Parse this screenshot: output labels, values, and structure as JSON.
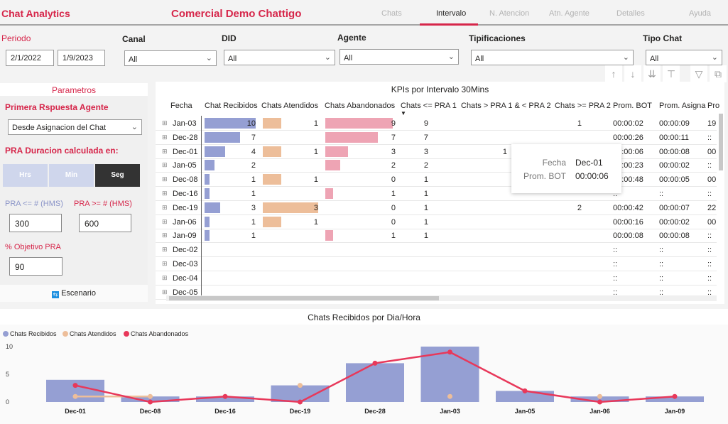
{
  "header": {
    "title": "Chat Analytics",
    "company": "Comercial Demo Chattigo",
    "tabs": [
      {
        "label": "Chats"
      },
      {
        "label": "Intervalo",
        "active": true
      },
      {
        "label": "N. Atencion"
      },
      {
        "label": "Atn. Agente"
      },
      {
        "label": "Detalles"
      },
      {
        "label": "Ayuda"
      }
    ]
  },
  "filters": {
    "periodo_label": "Periodo",
    "start": "2/1/2022",
    "end": "1/9/2023",
    "canal": {
      "label": "Canal",
      "value": "All"
    },
    "did": {
      "label": "DID",
      "value": "All"
    },
    "agente": {
      "label": "Agente",
      "value": "All"
    },
    "tipificaciones": {
      "label": "Tipificaciones",
      "value": "All"
    },
    "tipo_chat": {
      "label": "Tipo Chat",
      "value": "All"
    }
  },
  "toolbar": [
    "arrow-up-icon",
    "arrow-down-icon",
    "expand-all-down-icon",
    "expand-hierarchy-icon",
    "filter-icon",
    "focus-mode-icon"
  ],
  "params": {
    "title": "Parametros",
    "pra_label": "Primera Rspuesta Agente",
    "pra_value": "Desde Asignacion del Chat",
    "duracion_label": "PRA Duracion calculada en:",
    "units": [
      "Hrs",
      "Min",
      "Seg"
    ],
    "selected_unit": "Seg",
    "pra_le_label": "PRA <= # (HMS)",
    "pra_le": "300",
    "pra_ge_label": "PRA >= # (HMS)",
    "pra_ge": "600",
    "objetivo_label": "% Objetivo PRA",
    "objetivo": "90",
    "escenario": "Escenario"
  },
  "table": {
    "title": "KPIs por Intervalo 30Mins",
    "columns": [
      "Fecha",
      "Chat Recibidos",
      "Chats Atendidos",
      "Chats Abandonados",
      "Chats <= PRA 1",
      "Chats > PRA 1 & < PRA 2",
      "Chats >= PRA 2",
      "Prom. BOT",
      "Prom. Asigna",
      "Pro"
    ],
    "rows": [
      [
        "Jan-03",
        "10",
        "1",
        "9",
        "9",
        "",
        "1",
        "00:00:02",
        "00:00:09",
        "19"
      ],
      [
        "Dec-28",
        "7",
        "",
        "7",
        "7",
        "",
        "",
        "00:00:26",
        "00:00:11",
        "::"
      ],
      [
        "Dec-01",
        "4",
        "1",
        "3",
        "3",
        "1",
        "",
        "00:00:06",
        "00:00:08",
        "00"
      ],
      [
        "Jan-05",
        "2",
        "",
        "2",
        "2",
        "",
        "",
        "00:00:23",
        "00:00:02",
        "::"
      ],
      [
        "Dec-08",
        "1",
        "1",
        "0",
        "1",
        "",
        "",
        "00:00:48",
        "00:00:05",
        "00"
      ],
      [
        "Dec-16",
        "1",
        "",
        "1",
        "1",
        "",
        "",
        "::",
        "::",
        "::"
      ],
      [
        "Dec-19",
        "3",
        "3",
        "0",
        "1",
        "",
        "2",
        "00:00:42",
        "00:00:07",
        "22"
      ],
      [
        "Jan-06",
        "1",
        "1",
        "0",
        "1",
        "",
        "",
        "00:00:16",
        "00:00:02",
        "00"
      ],
      [
        "Jan-09",
        "1",
        "",
        "1",
        "1",
        "",
        "",
        "00:00:08",
        "00:00:08",
        "::"
      ],
      [
        "Dec-02",
        "",
        "",
        "",
        "",
        "",
        "",
        "::",
        "::",
        "::"
      ],
      [
        "Dec-03",
        "",
        "",
        "",
        "",
        "",
        "",
        "::",
        "::",
        "::"
      ],
      [
        "Dec-04",
        "",
        "",
        "",
        "",
        "",
        "",
        "::",
        "::",
        "::"
      ],
      [
        "Dec-05",
        "",
        "",
        "",
        "",
        "",
        "",
        "::",
        "::",
        "::"
      ]
    ],
    "tooltip": {
      "k1": "Fecha",
      "v1": "Dec-01",
      "k2": "Prom. BOT",
      "v2": "00:00:06"
    }
  },
  "colors": {
    "recibidos": "#959fd3",
    "atendidos": "#edbe9a",
    "abandonados": "#eea4b4",
    "line": "#e8385a",
    "accent": "#d6264a"
  },
  "chart_data": {
    "type": "bar",
    "title": "Chats Recibidos por Dia/Hora",
    "ylim": [
      0,
      10
    ],
    "yticks": [
      0,
      5,
      10
    ],
    "legend": "top-left",
    "categories": [
      "Dec-01",
      "Dec-08",
      "Dec-16",
      "Dec-19",
      "Dec-28",
      "Jan-03",
      "Jan-05",
      "Jan-06",
      "Jan-09"
    ],
    "series": [
      {
        "name": "Chats Recibidos",
        "kind": "bar",
        "values": [
          4,
          1,
          1,
          3,
          7,
          10,
          2,
          1,
          1
        ]
      },
      {
        "name": "Chats Atendidos",
        "kind": "line",
        "values": [
          1,
          1,
          null,
          3,
          null,
          1,
          null,
          1,
          null
        ]
      },
      {
        "name": "Chats Abandonados",
        "kind": "line",
        "values": [
          3,
          0,
          1,
          0,
          7,
          9,
          2,
          0,
          1
        ]
      }
    ]
  }
}
